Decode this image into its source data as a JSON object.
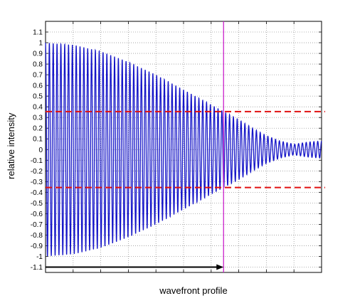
{
  "chart_data": {
    "type": "line",
    "title": "",
    "xlabel": "wavefront profile",
    "ylabel": "relative intensity",
    "ylim": [
      -1.15,
      1.2
    ],
    "yticks": [
      1.1,
      1,
      0.9,
      0.8,
      0.7,
      0.6,
      0.5,
      0.4,
      0.3,
      0.2,
      0.1,
      0,
      -0.1,
      -0.2,
      -0.3,
      -0.4,
      -0.5,
      -0.6,
      -0.7,
      -0.8,
      -0.9,
      -1,
      -1.1
    ],
    "yticklabels": [
      "1.1",
      "1",
      "0.9",
      "0.8",
      "0.7",
      "0.6",
      "0.5",
      "0.4",
      "0.3",
      "0.2",
      "0.1",
      "0",
      "-0.1",
      "-0.2",
      "-0.3",
      "-0.4",
      "-0.5",
      "-0.6",
      "-0.7",
      "-0.8",
      "-0.9",
      "-1",
      "-1.1"
    ],
    "xticks_shown": false,
    "grid": true,
    "series": [
      {
        "color": "#1515c8",
        "style": "oscillating signal with decaying envelope",
        "envelope": {
          "x": [
            0,
            0.1,
            0.2,
            0.3,
            0.4,
            0.5,
            0.6,
            0.65,
            0.7,
            0.75,
            0.8,
            0.85,
            0.9,
            0.95,
            1.0
          ],
          "amplitude": [
            1.0,
            0.98,
            0.92,
            0.82,
            0.7,
            0.56,
            0.42,
            0.35,
            0.28,
            0.2,
            0.13,
            0.08,
            0.05,
            0.07,
            0.08
          ]
        }
      }
    ],
    "hlines": [
      {
        "y": 0.355,
        "color": "#e01010",
        "style": "dashed"
      },
      {
        "y": -0.355,
        "color": "#e01010",
        "style": "dashed"
      }
    ],
    "vline": {
      "x": 0.645,
      "color": "#cc22cc"
    },
    "arrow": {
      "y": -1.1,
      "x_from": 0,
      "x_to": 0.645,
      "color": "#000000"
    }
  }
}
